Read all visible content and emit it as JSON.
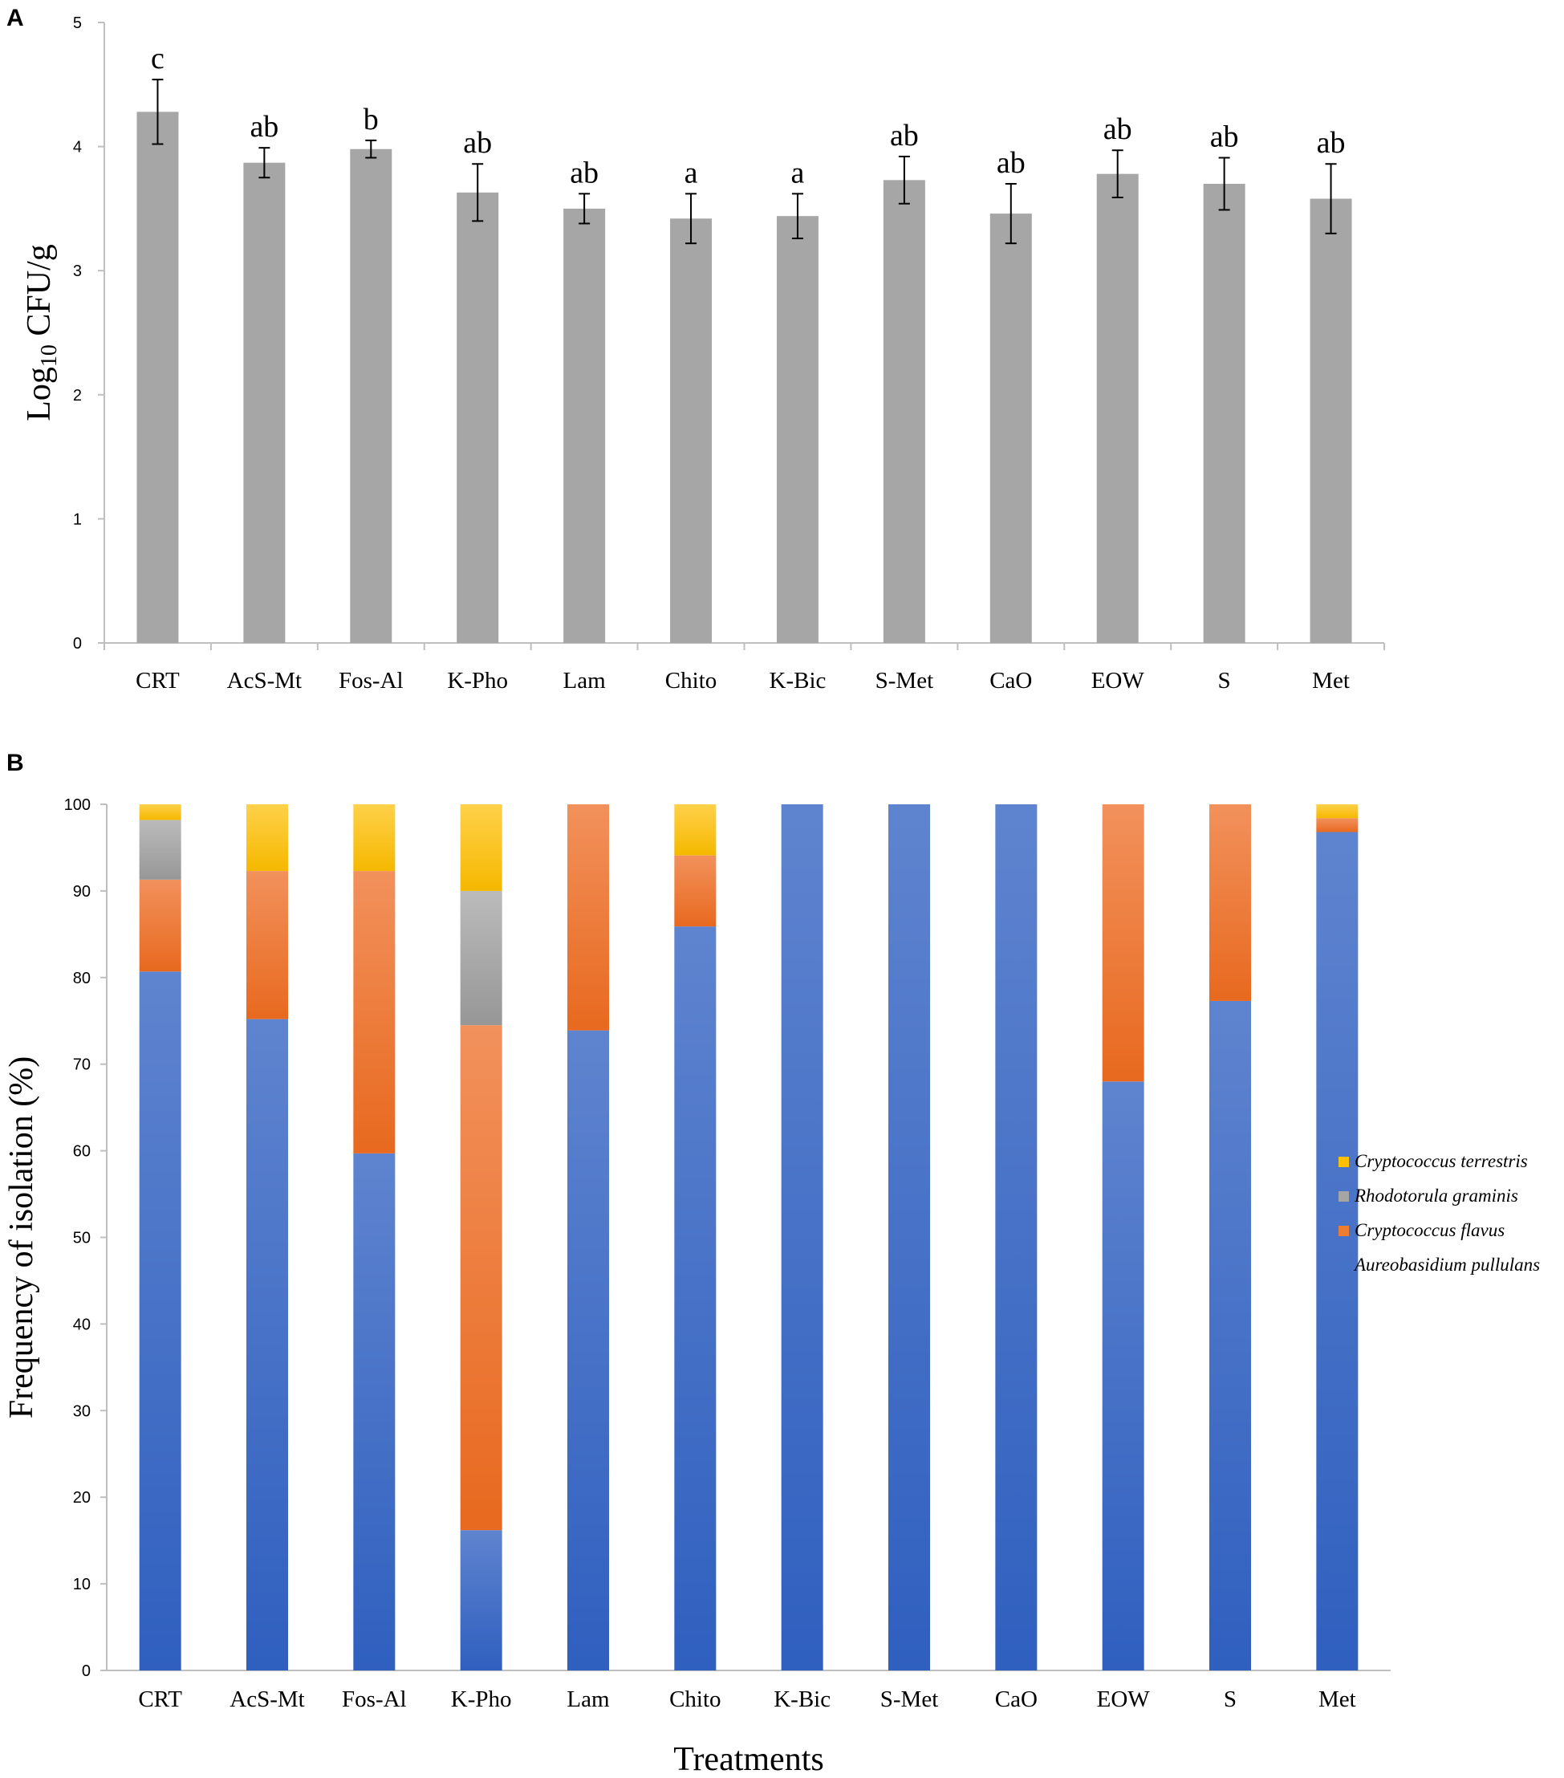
{
  "chart_data": [
    {
      "panel": "A",
      "type": "bar",
      "ylabel_main": "Log",
      "ylabel_sub": "10",
      "ylabel_rest": " CFU/g",
      "xlabel": "",
      "ylim": [
        0,
        5
      ],
      "yticks": [
        0,
        1,
        2,
        3,
        4,
        5
      ],
      "grid": false,
      "color": "#a6a6a6",
      "categories": [
        "CRT",
        "AcS-Mt",
        "Fos-Al",
        "K-Pho",
        "Lam",
        "Chito",
        "K-Bic",
        "S-Met",
        "CaO",
        "EOW",
        "S",
        "Met"
      ],
      "values": [
        4.28,
        3.87,
        3.98,
        3.63,
        3.5,
        3.42,
        3.44,
        3.73,
        3.46,
        3.78,
        3.7,
        3.58
      ],
      "errors": [
        0.26,
        0.12,
        0.07,
        0.23,
        0.12,
        0.2,
        0.18,
        0.19,
        0.24,
        0.19,
        0.21,
        0.28
      ],
      "letters": [
        "c",
        "ab",
        "b",
        "ab",
        "ab",
        "a",
        "a",
        "ab",
        "ab",
        "ab",
        "ab",
        "ab"
      ]
    },
    {
      "panel": "B",
      "type": "bar",
      "stacked": true,
      "ylabel": "Frequency of isolation (%)",
      "xlabel": "Treatments",
      "ylim": [
        0,
        100
      ],
      "yticks": [
        0,
        10,
        20,
        30,
        40,
        50,
        60,
        70,
        80,
        90,
        100
      ],
      "grid": false,
      "legend_position": "right",
      "categories": [
        "CRT",
        "AcS-Mt",
        "Fos-Al",
        "K-Pho",
        "Lam",
        "Chito",
        "K-Bic",
        "S-Met",
        "CaO",
        "EOW",
        "S",
        "Met"
      ],
      "series": [
        {
          "name": "Aureobasidium pullulans",
          "color": "#4472c4",
          "values": [
            80.7,
            75.2,
            59.7,
            16.2,
            73.9,
            85.9,
            100,
            100,
            100,
            68.0,
            77.3,
            96.8
          ]
        },
        {
          "name": "Cryptococcus flavus",
          "color": "#ed7d31",
          "values": [
            10.6,
            17.1,
            32.6,
            58.3,
            26.1,
            8.2,
            0,
            0,
            0,
            32.0,
            22.7,
            1.6
          ]
        },
        {
          "name": "Rhodotorula graminis",
          "color": "#a5a5a5",
          "values": [
            6.9,
            0,
            0,
            15.5,
            0,
            0,
            0,
            0,
            0,
            0,
            0,
            0
          ]
        },
        {
          "name": "Cryptococcus terrestris",
          "color": "#ffc000",
          "values": [
            1.8,
            7.7,
            7.7,
            10.0,
            0,
            5.9,
            0,
            0,
            0,
            0,
            0,
            1.6
          ]
        }
      ],
      "legend_order": [
        "Cryptococcus terrestris",
        "Rhodotorula graminis",
        "Cryptococcus flavus",
        "Aureobasidium pullulans"
      ]
    }
  ]
}
